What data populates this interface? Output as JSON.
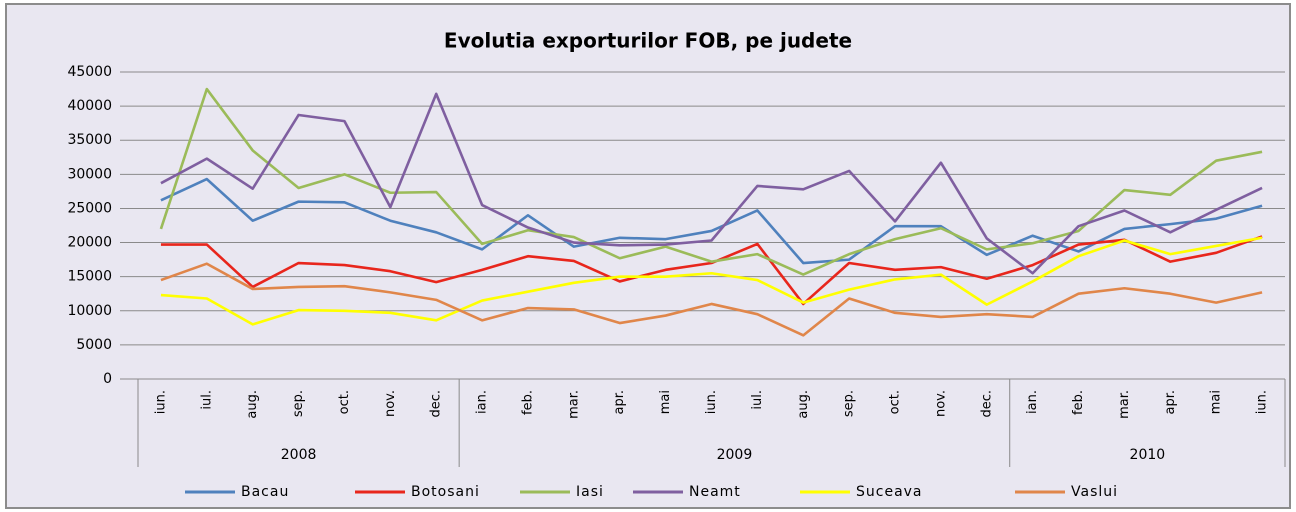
{
  "chart_data": {
    "type": "line",
    "title": "Evolutia exporturilor FOB, pe judete",
    "groups": [
      {
        "name": "2008",
        "categories": [
          "iun.",
          "iul.",
          "aug.",
          "sep.",
          "oct.",
          "nov.",
          "dec."
        ]
      },
      {
        "name": "2009",
        "categories": [
          "ian.",
          "feb.",
          "mar.",
          "apr.",
          "mai",
          "iun.",
          "iul.",
          "aug.",
          "sep.",
          "oct.",
          "nov.",
          "dec."
        ]
      },
      {
        "name": "2010",
        "categories": [
          "ian.",
          "feb.",
          "mar.",
          "apr.",
          "mai",
          "iun."
        ]
      }
    ],
    "series": [
      {
        "name": "Bacau",
        "color": "#4f81bd",
        "values": [
          26200,
          29300,
          23200,
          26000,
          25900,
          23200,
          21500,
          19000,
          24000,
          19400,
          20700,
          20500,
          21700,
          24700,
          17000,
          17500,
          22400,
          22400,
          18200,
          21000,
          18700,
          22000,
          22700,
          23500,
          25400
        ]
      },
      {
        "name": "Botosani",
        "color": "#e8261c",
        "values": [
          19700,
          19700,
          13500,
          17000,
          16700,
          15800,
          14200,
          16000,
          18000,
          17300,
          14300,
          16000,
          17000,
          19800,
          11000,
          17000,
          16000,
          16400,
          14700,
          16700,
          19700,
          20400,
          17200,
          18500,
          20900
        ]
      },
      {
        "name": "Iasi",
        "color": "#9bbb59",
        "values": [
          22000,
          42500,
          33500,
          28000,
          30000,
          27300,
          27400,
          19800,
          21800,
          20800,
          17700,
          19400,
          17200,
          18300,
          15300,
          18300,
          20500,
          22100,
          19000,
          19900,
          21700,
          27700,
          27000,
          32000,
          33300
        ]
      },
      {
        "name": "Neamt",
        "color": "#7f5fa0",
        "values": [
          28700,
          32300,
          27900,
          38700,
          37800,
          25200,
          41800,
          25500,
          22200,
          20000,
          19600,
          19700,
          20300,
          28300,
          27800,
          30500,
          23100,
          31700,
          20600,
          15500,
          22400,
          24700,
          21500,
          24800,
          28000
        ]
      },
      {
        "name": "Suceava",
        "color": "#ffff00",
        "values": [
          12300,
          11800,
          8000,
          10100,
          10000,
          9700,
          8600,
          11500,
          12800,
          14100,
          15000,
          15000,
          15500,
          14500,
          11200,
          13100,
          14600,
          15300,
          10900,
          14300,
          18000,
          20300,
          18300,
          19500,
          20700
        ]
      },
      {
        "name": "Vaslui",
        "color": "#e0864a",
        "values": [
          14500,
          16900,
          13200,
          13500,
          13600,
          12700,
          11600,
          8600,
          10400,
          10200,
          8200,
          9300,
          11000,
          9500,
          6400,
          11800,
          9700,
          9100,
          9500,
          9100,
          12500,
          13300,
          12500,
          11200,
          12700
        ]
      }
    ],
    "ylim": [
      0,
      45000
    ],
    "yticks": [
      0,
      5000,
      10000,
      15000,
      20000,
      25000,
      30000,
      35000,
      40000,
      45000
    ],
    "grid": true,
    "legend": "bottom"
  }
}
